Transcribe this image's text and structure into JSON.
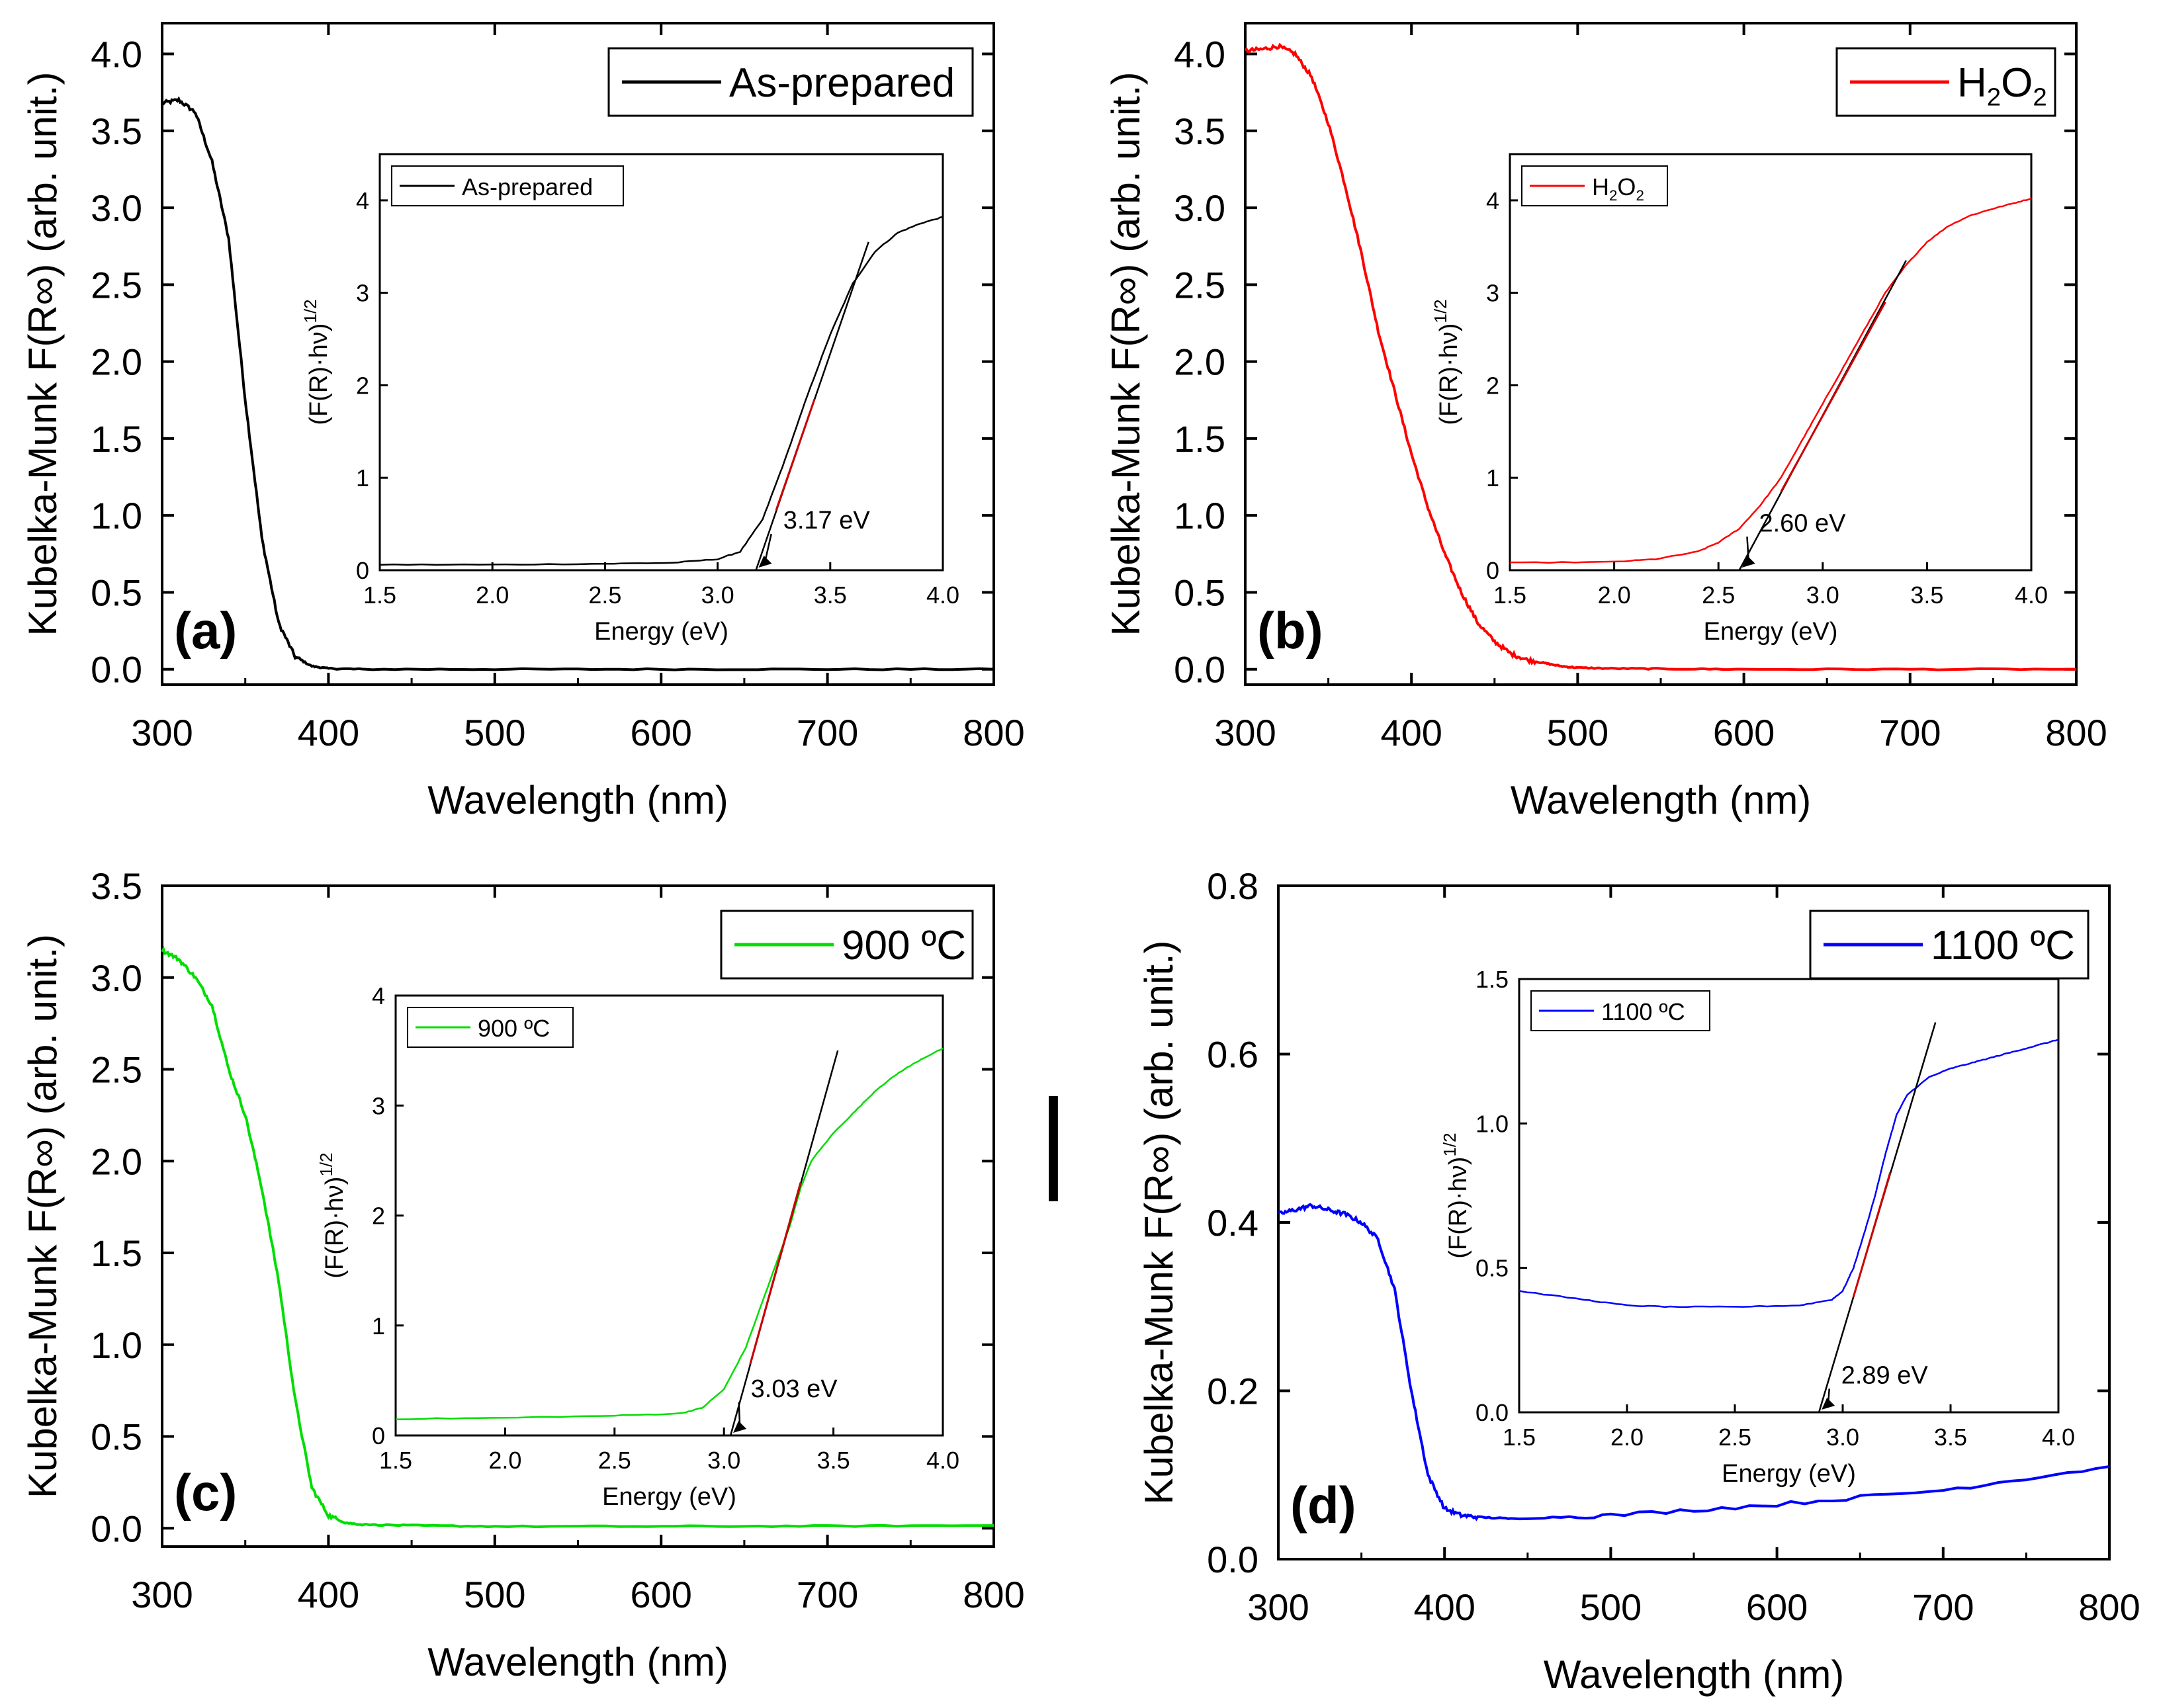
{
  "figure": {
    "description_label": "Kubelka-Munk spectra with Tauc inset plots",
    "stray_marker": "|"
  },
  "chart_data": [
    {
      "type": "line",
      "panel_label": "(a)",
      "xlabel": "Wavelength (nm)",
      "ylabel": "Kubelka-Munk F(R∞) (arb. unit.)",
      "xlim": [
        300,
        800
      ],
      "ylim": [
        -0.1,
        4.2
      ],
      "xticks": [
        300,
        400,
        500,
        600,
        700,
        800
      ],
      "xtick_labels": [
        "300",
        "400",
        "500",
        "600",
        "700",
        "800"
      ],
      "yticks": [
        0,
        0.5,
        1,
        1.5,
        2,
        2.5,
        3,
        3.5,
        4
      ],
      "ytick_labels": [
        "0.0",
        "0.5",
        "1.0",
        "1.5",
        "2.0",
        "2.5",
        "3.0",
        "3.5",
        "4.0"
      ],
      "color": "#000000",
      "legend": {
        "label": "As-prepared",
        "sub": "",
        "tail": "",
        "position": "top-right"
      },
      "series": [
        {
          "name": "As-prepared",
          "x": [
            300,
            310,
            320,
            330,
            340,
            350,
            360,
            370,
            380,
            390,
            400,
            420,
            500,
            600,
            700,
            800
          ],
          "y": [
            3.68,
            3.7,
            3.62,
            3.3,
            2.8,
            1.75,
            0.85,
            0.3,
            0.08,
            0.02,
            0.005,
            0.0,
            0.0,
            0.0,
            0.0,
            0.0
          ]
        }
      ],
      "inset": {
        "xlabel": "Energy (eV)",
        "ylabel": "(F(R)·hν)",
        "ylabel_sup": "1/2",
        "xlim": [
          1.5,
          4.0
        ],
        "ylim": [
          0,
          4.5
        ],
        "xticks": [
          1.5,
          2,
          2.5,
          3,
          3.5,
          4
        ],
        "xtick_labels": [
          "1.5",
          "2.0",
          "2.5",
          "3.0",
          "3.5",
          "4.0"
        ],
        "yticks": [
          0,
          1,
          2,
          3,
          4
        ],
        "ytick_labels": [
          "0",
          "1",
          "2",
          "3",
          "4"
        ],
        "legend": {
          "label": "As-prepared",
          "sub": "",
          "tail": ""
        },
        "curve": {
          "x": [
            1.5,
            2.0,
            2.5,
            2.8,
            3.0,
            3.1,
            3.2,
            3.3,
            3.4,
            3.5,
            3.6,
            3.7,
            3.8,
            3.9,
            4.0
          ],
          "y": [
            0.06,
            0.06,
            0.07,
            0.08,
            0.12,
            0.2,
            0.55,
            1.2,
            1.9,
            2.55,
            3.1,
            3.45,
            3.65,
            3.75,
            3.82
          ]
        },
        "fit_line": {
          "x": [
            3.17,
            3.67
          ],
          "y": [
            0,
            3.55
          ]
        },
        "fit_red": {
          "x": [
            3.26,
            3.43
          ],
          "y": [
            0.65,
            1.85
          ]
        },
        "annotation": {
          "text": "3.17 eV",
          "x": 3.17,
          "text_x": 3.25,
          "text_y": 0.45
        }
      }
    },
    {
      "type": "line",
      "panel_label": "(b)",
      "xlabel": "Wavelength (nm)",
      "ylabel": "Kubelka-Munk F(R∞) (arb. unit.)",
      "xlim": [
        300,
        800
      ],
      "ylim": [
        -0.1,
        4.2
      ],
      "xticks": [
        300,
        400,
        500,
        600,
        700,
        800
      ],
      "xtick_labels": [
        "300",
        "400",
        "500",
        "600",
        "700",
        "800"
      ],
      "yticks": [
        0,
        0.5,
        1,
        1.5,
        2,
        2.5,
        3,
        3.5,
        4
      ],
      "ytick_labels": [
        "0.0",
        "0.5",
        "1.0",
        "1.5",
        "2.0",
        "2.5",
        "3.0",
        "3.5",
        "4.0"
      ],
      "color": "#ff0000",
      "legend": {
        "label": "H",
        "sub": "2",
        "tail": "O2",
        "position": "top-right"
      },
      "series": [
        {
          "name": "H2O2",
          "x": [
            300,
            310,
            320,
            330,
            340,
            350,
            360,
            370,
            380,
            390,
            400,
            410,
            420,
            430,
            440,
            450,
            460,
            470,
            480,
            490,
            500,
            520,
            550,
            600,
            700,
            800
          ],
          "y": [
            4.02,
            4.03,
            4.05,
            4.0,
            3.85,
            3.55,
            3.15,
            2.7,
            2.2,
            1.8,
            1.4,
            1.05,
            0.75,
            0.5,
            0.3,
            0.18,
            0.1,
            0.06,
            0.04,
            0.02,
            0.01,
            0.005,
            0.003,
            0.0,
            0.0,
            0.0
          ]
        }
      ],
      "inset": {
        "xlabel": "Energy (eV)",
        "ylabel": "(F(R)·hν)",
        "ylabel_sup": "1/2",
        "xlim": [
          1.5,
          4.0
        ],
        "ylim": [
          0,
          4.5
        ],
        "xticks": [
          1.5,
          2,
          2.5,
          3,
          3.5,
          4
        ],
        "xtick_labels": [
          "1.5",
          "2.0",
          "2.5",
          "3.0",
          "3.5",
          "4.0"
        ],
        "yticks": [
          0,
          1,
          2,
          3,
          4
        ],
        "ytick_labels": [
          "0",
          "1",
          "2",
          "3",
          "4"
        ],
        "legend": {
          "label": "H",
          "sub": "2",
          "tail": "O2"
        },
        "curve": {
          "x": [
            1.5,
            2.0,
            2.2,
            2.4,
            2.5,
            2.6,
            2.7,
            2.8,
            2.9,
            3.0,
            3.1,
            3.2,
            3.3,
            3.4,
            3.5,
            3.6,
            3.7,
            3.8,
            3.9,
            4.0
          ],
          "y": [
            0.08,
            0.09,
            0.12,
            0.2,
            0.3,
            0.45,
            0.7,
            1.0,
            1.4,
            1.8,
            2.2,
            2.6,
            3.0,
            3.3,
            3.55,
            3.72,
            3.83,
            3.9,
            3.96,
            4.02
          ]
        },
        "fit_line": {
          "x": [
            2.6,
            3.4
          ],
          "y": [
            0,
            3.35
          ]
        },
        "fit_red": {
          "x": [
            2.8,
            3.3
          ],
          "y": [
            0.85,
            2.9
          ]
        },
        "annotation": {
          "text": "2.60 eV",
          "x": 2.6,
          "text_x": 2.65,
          "text_y": 0.42
        }
      }
    },
    {
      "type": "line",
      "panel_label": "(c)",
      "xlabel": "Wavelength (nm)",
      "ylabel": "Kubelka-Munk F(R∞) (arb. unit.)",
      "xlim": [
        300,
        800
      ],
      "ylim": [
        -0.1,
        3.5
      ],
      "xticks": [
        300,
        400,
        500,
        600,
        700,
        800
      ],
      "xtick_labels": [
        "300",
        "400",
        "500",
        "600",
        "700",
        "800"
      ],
      "yticks": [
        0,
        0.5,
        1,
        1.5,
        2,
        2.5,
        3,
        3.5
      ],
      "ytick_labels": [
        "0.0",
        "0.5",
        "1.0",
        "1.5",
        "2.0",
        "2.5",
        "3.0",
        "3.5"
      ],
      "color": "#00dd00",
      "legend": {
        "label": "900 ºC",
        "sub": "",
        "tail": "",
        "position": "top-right"
      },
      "series": [
        {
          "name": "900 ºC",
          "x": [
            300,
            310,
            320,
            330,
            340,
            350,
            360,
            370,
            380,
            390,
            400,
            410,
            420,
            450,
            500,
            600,
            700,
            800
          ],
          "y": [
            3.15,
            3.1,
            3.0,
            2.85,
            2.5,
            2.25,
            1.85,
            1.35,
            0.7,
            0.22,
            0.07,
            0.03,
            0.02,
            0.015,
            0.01,
            0.01,
            0.012,
            0.015
          ]
        }
      ],
      "inset": {
        "xlabel": "Energy (eV)",
        "ylabel": "(F(R)·hν)",
        "ylabel_sup": "1/2",
        "xlim": [
          1.5,
          4.0
        ],
        "ylim": [
          0,
          4
        ],
        "xticks": [
          1.5,
          2,
          2.5,
          3,
          3.5,
          4
        ],
        "xtick_labels": [
          "1.5",
          "2.0",
          "2.5",
          "3.0",
          "3.5",
          "4.0"
        ],
        "yticks": [
          0,
          1,
          2,
          3,
          4
        ],
        "ytick_labels": [
          "0",
          "1",
          "2",
          "3",
          "4"
        ],
        "legend": {
          "label": "900 ºC",
          "sub": "",
          "tail": ""
        },
        "curve": {
          "x": [
            1.5,
            2.0,
            2.5,
            2.8,
            2.9,
            3.0,
            3.1,
            3.2,
            3.3,
            3.35,
            3.4,
            3.5,
            3.6,
            3.7,
            3.8,
            3.9,
            4.0
          ],
          "y": [
            0.15,
            0.16,
            0.18,
            0.2,
            0.25,
            0.42,
            0.8,
            1.35,
            1.9,
            2.25,
            2.5,
            2.75,
            2.95,
            3.15,
            3.3,
            3.42,
            3.52
          ]
        },
        "fit_line": {
          "x": [
            3.03,
            3.52
          ],
          "y": [
            0,
            3.5
          ]
        },
        "fit_red": {
          "x": [
            3.12,
            3.35
          ],
          "y": [
            0.65,
            2.3
          ]
        },
        "annotation": {
          "text": "3.03 eV",
          "x": 3.03,
          "text_x": 3.08,
          "text_y": 0.35
        }
      }
    },
    {
      "type": "line",
      "panel_label": "(d)",
      "xlabel": "Wavelength (nm)",
      "ylabel": "Kubelka-Munk F(R∞) (arb. unit.)",
      "xlim": [
        300,
        800
      ],
      "ylim": [
        0,
        0.8
      ],
      "xticks": [
        300,
        400,
        500,
        600,
        700,
        800
      ],
      "xtick_labels": [
        "300",
        "400",
        "500",
        "600",
        "700",
        "800"
      ],
      "yticks": [
        0,
        0.2,
        0.4,
        0.6,
        0.8
      ],
      "ytick_labels": [
        "0.0",
        "0.2",
        "0.4",
        "0.6",
        "0.8"
      ],
      "color": "#0000ff",
      "legend": {
        "label": "1100 ºC",
        "sub": "",
        "tail": "",
        "position": "top-right"
      },
      "series": [
        {
          "name": "1100 ºC",
          "x": [
            300,
            310,
            320,
            330,
            340,
            350,
            360,
            370,
            380,
            390,
            400,
            410,
            420,
            440,
            500,
            600,
            700,
            800
          ],
          "y": [
            0.41,
            0.415,
            0.42,
            0.415,
            0.41,
            0.4,
            0.38,
            0.32,
            0.2,
            0.1,
            0.06,
            0.052,
            0.05,
            0.048,
            0.052,
            0.065,
            0.082,
            0.11
          ]
        }
      ],
      "inset": {
        "xlabel": "Energy (eV)",
        "ylabel": "(F(R)·hν)",
        "ylabel_sup": "1/2",
        "xlim": [
          1.5,
          4.0
        ],
        "ylim": [
          0,
          1.5
        ],
        "xticks": [
          1.5,
          2,
          2.5,
          3,
          3.5,
          4
        ],
        "xtick_labels": [
          "1.5",
          "2.0",
          "2.5",
          "3.0",
          "3.5",
          "4.0"
        ],
        "yticks": [
          0,
          0.5,
          1,
          1.5
        ],
        "ytick_labels": [
          "0.0",
          "0.5",
          "1.0",
          "1.5"
        ],
        "legend": {
          "label": "1100 ºC",
          "sub": "",
          "tail": ""
        },
        "curve": {
          "x": [
            1.5,
            1.8,
            2.0,
            2.2,
            2.5,
            2.8,
            2.95,
            3.0,
            3.05,
            3.1,
            3.15,
            3.2,
            3.25,
            3.3,
            3.4,
            3.5,
            3.6,
            3.7,
            3.8,
            3.9,
            4.0
          ],
          "y": [
            0.42,
            0.39,
            0.37,
            0.365,
            0.365,
            0.37,
            0.39,
            0.42,
            0.5,
            0.62,
            0.75,
            0.9,
            1.03,
            1.1,
            1.16,
            1.19,
            1.21,
            1.23,
            1.25,
            1.27,
            1.29
          ]
        },
        "fit_line": {
          "x": [
            2.89,
            3.43
          ],
          "y": [
            0,
            1.35
          ]
        },
        "fit_red": {
          "x": [
            3.05,
            3.22
          ],
          "y": [
            0.4,
            0.83
          ]
        },
        "annotation": {
          "text": "2.89 eV",
          "x": 2.89,
          "text_x": 2.95,
          "text_y": 0.1
        }
      }
    }
  ]
}
